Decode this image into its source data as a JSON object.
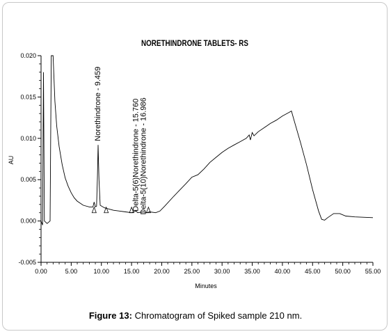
{
  "caption": {
    "label": "Figure 13:",
    "text": "Chromatogram of Spiked sample 210 nm."
  },
  "chart_data": {
    "type": "line",
    "title": "NORETHINDRONE TABLETS- RS",
    "xlabel": "Minutes",
    "ylabel": "AU",
    "xlim": [
      0,
      55
    ],
    "ylim": [
      -0.005,
      0.02
    ],
    "x_ticks": [
      "0.00",
      "5.00",
      "10.00",
      "15.00",
      "20.00",
      "25.00",
      "30.00",
      "35.00",
      "40.00",
      "45.00",
      "50.00",
      "55.00"
    ],
    "y_ticks": [
      "-0.005",
      "0.000",
      "0.005",
      "0.010",
      "0.015",
      "0.020"
    ],
    "series": [
      {
        "values": [
          [
            0.0,
            0.0
          ],
          [
            0.25,
            -0.0005
          ],
          [
            0.4,
            0.018
          ],
          [
            0.55,
            0.0
          ],
          [
            1.0,
            -0.0003
          ],
          [
            1.5,
            0.0
          ],
          [
            1.7,
            0.02
          ],
          [
            2.0,
            0.02
          ],
          [
            2.3,
            0.0145
          ],
          [
            2.6,
            0.0115
          ],
          [
            3.0,
            0.009
          ],
          [
            3.5,
            0.0068
          ],
          [
            4.0,
            0.0052
          ],
          [
            4.5,
            0.0042
          ],
          [
            5.0,
            0.0034
          ],
          [
            5.5,
            0.0028
          ],
          [
            6.0,
            0.0024
          ],
          [
            7.0,
            0.0019
          ],
          [
            8.0,
            0.0017
          ],
          [
            8.6,
            0.0017
          ],
          [
            8.8,
            0.0023
          ],
          [
            9.0,
            0.0017
          ],
          [
            9.2,
            0.0018
          ],
          [
            9.35,
            0.0055
          ],
          [
            9.459,
            0.0092
          ],
          [
            9.6,
            0.005
          ],
          [
            9.8,
            0.0019
          ],
          [
            10.5,
            0.0016
          ],
          [
            11.0,
            0.0015
          ],
          [
            12.0,
            0.0013
          ],
          [
            13.0,
            0.0012
          ],
          [
            14.0,
            0.0011
          ],
          [
            15.0,
            0.001
          ],
          [
            15.76,
            0.0012
          ],
          [
            16.0,
            0.001
          ],
          [
            16.986,
            0.0011
          ],
          [
            17.5,
            0.001
          ],
          [
            18.0,
            0.0011
          ],
          [
            19.0,
            0.001
          ],
          [
            19.7,
            0.0012
          ],
          [
            20.5,
            0.0018
          ],
          [
            22.0,
            0.003
          ],
          [
            24.0,
            0.0045
          ],
          [
            25.0,
            0.0053
          ],
          [
            26.0,
            0.0056
          ],
          [
            27.0,
            0.0063
          ],
          [
            28.0,
            0.0071
          ],
          [
            29.0,
            0.0077
          ],
          [
            30.0,
            0.0083
          ],
          [
            31.0,
            0.0088
          ],
          [
            32.0,
            0.0092
          ],
          [
            33.0,
            0.0096
          ],
          [
            34.0,
            0.01
          ],
          [
            34.5,
            0.0104
          ],
          [
            34.7,
            0.0098
          ],
          [
            35.0,
            0.0107
          ],
          [
            35.3,
            0.0103
          ],
          [
            36.0,
            0.0108
          ],
          [
            37.0,
            0.0113
          ],
          [
            38.0,
            0.0118
          ],
          [
            39.0,
            0.0122
          ],
          [
            40.0,
            0.0127
          ],
          [
            41.0,
            0.0131
          ],
          [
            41.5,
            0.0133
          ],
          [
            42.0,
            0.012
          ],
          [
            43.0,
            0.0095
          ],
          [
            44.0,
            0.0068
          ],
          [
            45.0,
            0.0038
          ],
          [
            46.0,
            0.0012
          ],
          [
            46.5,
            0.0002
          ],
          [
            47.0,
            0.0001
          ],
          [
            47.5,
            0.0004
          ],
          [
            48.5,
            0.0009
          ],
          [
            49.5,
            0.0009
          ],
          [
            50.5,
            0.0006
          ],
          [
            52.0,
            0.0005
          ],
          [
            55.0,
            0.0004
          ]
        ]
      }
    ],
    "peak_labels": [
      {
        "text": "Norethindrone - 9.459",
        "x": 9.459
      },
      {
        "text": "Delta-5(6)Norethindrone - 15.760",
        "x": 15.76
      },
      {
        "text": "Delta-5(10)Norethindrone - 16.986",
        "x": 16.986
      }
    ],
    "baseline_markers": [
      8.8,
      10.8,
      15.0,
      17.8
    ],
    "grid": false,
    "line_color": "#000000"
  }
}
